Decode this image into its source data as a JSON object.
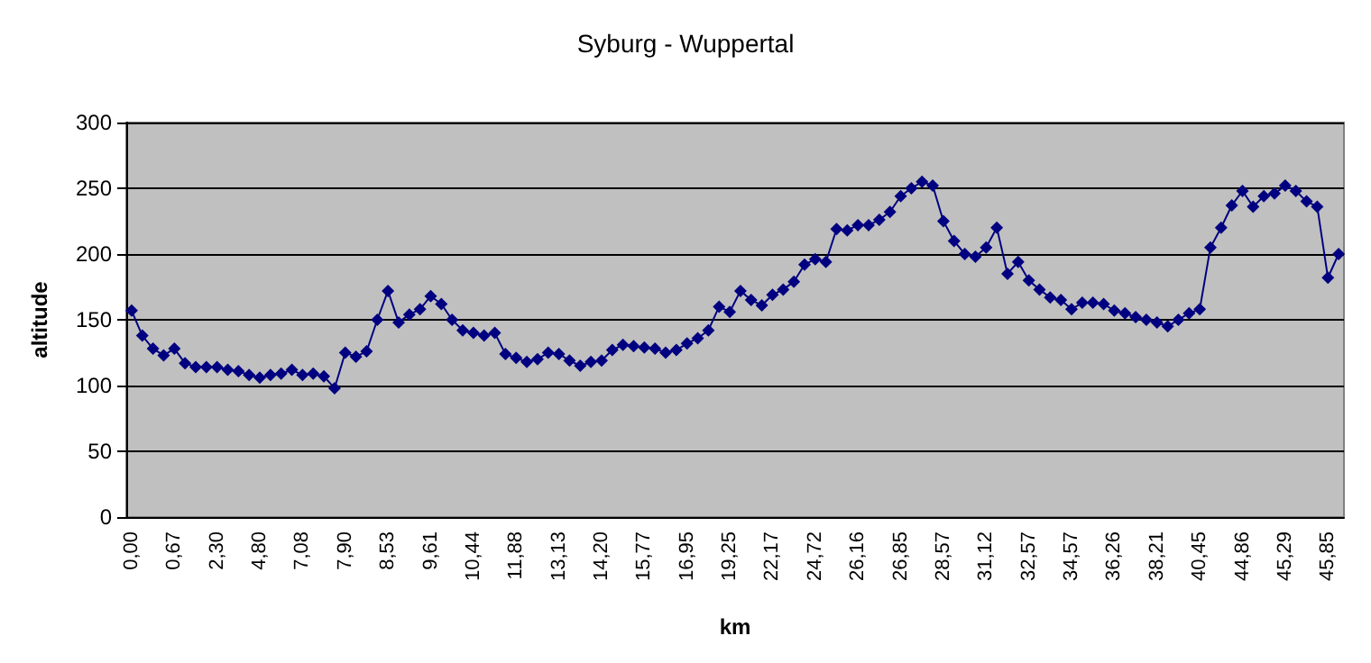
{
  "chart_data": {
    "type": "line",
    "title": "Syburg - Wuppertal",
    "xlabel": "km",
    "ylabel": "altitude",
    "categories": [
      "0,00",
      null,
      null,
      null,
      "0,67",
      null,
      null,
      null,
      "2,30",
      null,
      null,
      null,
      "4,80",
      null,
      null,
      null,
      "7,08",
      null,
      null,
      null,
      "7,90",
      null,
      null,
      null,
      "8,53",
      null,
      null,
      null,
      "9,61",
      null,
      null,
      null,
      "10,44",
      null,
      null,
      null,
      "11,88",
      null,
      null,
      null,
      "13,13",
      null,
      null,
      null,
      "14,20",
      null,
      null,
      null,
      "15,77",
      null,
      null,
      null,
      "16,95",
      null,
      null,
      null,
      "19,25",
      null,
      null,
      null,
      "22,17",
      null,
      null,
      null,
      "24,72",
      null,
      null,
      null,
      "26,16",
      null,
      null,
      null,
      "26,85",
      null,
      null,
      null,
      "28,57",
      null,
      null,
      null,
      "31,12",
      null,
      null,
      null,
      "32,57",
      null,
      null,
      null,
      "34,57",
      null,
      null,
      null,
      "36,26",
      null,
      null,
      null,
      "38,21",
      null,
      null,
      null,
      "40,45",
      null,
      null,
      null,
      "44,86",
      null,
      null,
      null,
      "45,29",
      null,
      null,
      null,
      "45,85",
      null
    ],
    "series": [
      {
        "color": "#000080",
        "values": [
          157,
          138,
          128,
          123,
          128,
          117,
          114,
          114,
          114,
          112,
          111,
          108,
          106,
          108,
          109,
          112,
          108,
          109,
          107,
          98,
          125,
          122,
          126,
          150,
          172,
          148,
          154,
          158,
          168,
          162,
          150,
          142,
          140,
          138,
          140,
          124,
          121,
          118,
          120,
          125,
          124,
          119,
          115,
          118,
          119,
          127,
          131,
          130,
          129,
          128,
          125,
          127,
          132,
          136,
          142,
          160,
          156,
          172,
          165,
          161,
          169,
          173,
          179,
          192,
          196,
          194,
          219,
          218,
          222,
          222,
          226,
          232,
          244,
          250,
          255,
          252,
          225,
          210,
          200,
          198,
          205,
          220,
          185,
          194,
          180,
          173,
          167,
          165,
          158,
          163,
          163,
          162,
          157,
          155,
          152,
          150,
          148,
          145,
          150,
          155,
          158,
          205,
          220,
          237,
          248,
          236,
          244,
          246,
          252,
          248,
          240,
          236,
          182,
          200
        ]
      }
    ],
    "ylim": [
      0,
      300
    ],
    "yticks": [
      0,
      50,
      100,
      150,
      200,
      250,
      300
    ],
    "grid": "y",
    "marker": "diamond",
    "line_style": "solid"
  }
}
